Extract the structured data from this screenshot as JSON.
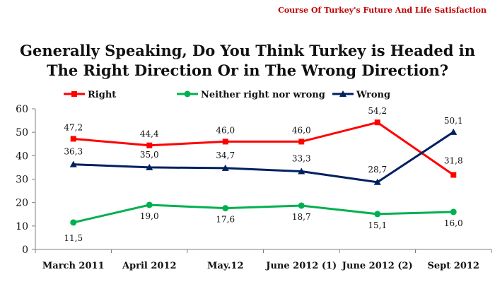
{
  "header_tag": "Course Of Turkey's Future And Life Satisfaction",
  "title_lines": [
    "Generally Speaking, Do You Think Turkey is Headed in",
    "The Right Direction Or in The Wrong Direction?"
  ],
  "colors": {
    "right": "#ff0000",
    "neither": "#00b050",
    "wrong": "#002060",
    "header": "#c00000"
  },
  "chart_data": {
    "type": "line",
    "title": "Generally Speaking, Do You Think Turkey is Headed in The Right Direction Or in The Wrong Direction?",
    "categories": [
      "March 2011",
      "April 2012",
      "May.12",
      "June 2012 (1)",
      "June 2012 (2)",
      "Sept 2012"
    ],
    "ylim": [
      0,
      60
    ],
    "yticks": [
      0,
      10,
      20,
      30,
      40,
      50,
      60
    ],
    "grid": false,
    "legend": "top",
    "series": [
      {
        "name": "Right",
        "marker": "square",
        "color": "#ff0000",
        "values": [
          47.2,
          44.4,
          46.0,
          46.0,
          54.2,
          31.8
        ],
        "labels": [
          "47,2",
          "44,4",
          "46,0",
          "46,0",
          "54,2",
          "31,8"
        ]
      },
      {
        "name": "Neither right nor wrong",
        "marker": "circle",
        "color": "#00b050",
        "values": [
          11.5,
          19.0,
          17.6,
          18.7,
          15.1,
          16.0
        ],
        "labels": [
          "11,5",
          "19,0",
          "17,6",
          "18,7",
          "15,1",
          "16,0"
        ]
      },
      {
        "name": "Wrong",
        "marker": "triangle",
        "color": "#002060",
        "values": [
          36.3,
          35.0,
          34.7,
          33.3,
          28.7,
          50.1
        ],
        "labels": [
          "36,3",
          "35,0",
          "34,7",
          "33,3",
          "28,7",
          "50,1"
        ]
      }
    ]
  }
}
